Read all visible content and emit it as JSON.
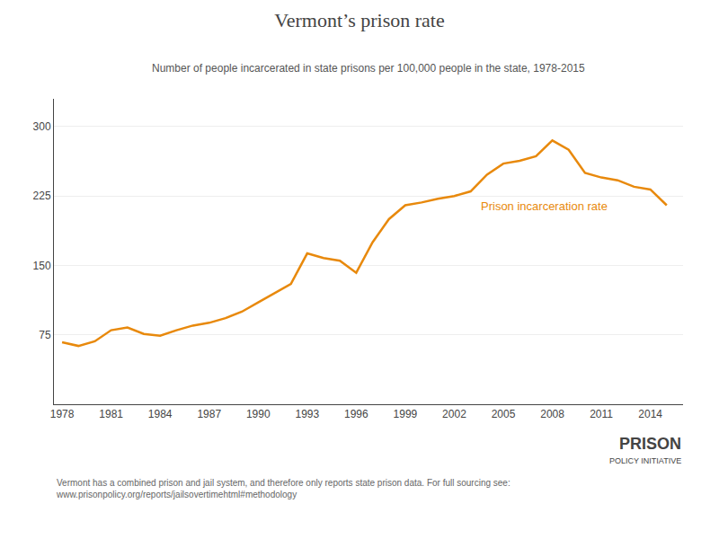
{
  "chart_data": {
    "type": "line",
    "title": "Vermont’s prison rate",
    "subtitle": "Number of people incarcerated in state prisons per 100,000 people in the state, 1978-2015",
    "annotation": "Prison incarceration rate",
    "footnote": [
      "Vermont has a combined prison and jail system, and therefore only reports state prison data. For full sourcing see:",
      "www.prisonpolicy.org/reports/jailsovertimehtml#methodology"
    ],
    "logo": [
      "PRISON",
      "POLICY INITIATIVE"
    ],
    "x": [
      1978,
      1979,
      1980,
      1981,
      1982,
      1983,
      1984,
      1985,
      1986,
      1987,
      1988,
      1989,
      1990,
      1991,
      1992,
      1993,
      1994,
      1995,
      1996,
      1997,
      1998,
      1999,
      2000,
      2001,
      2002,
      2003,
      2004,
      2005,
      2006,
      2007,
      2008,
      2009,
      2010,
      2011,
      2012,
      2013,
      2014,
      2015
    ],
    "values": [
      67,
      63,
      68,
      80,
      83,
      76,
      74,
      80,
      85,
      88,
      93,
      100,
      110,
      120,
      130,
      163,
      158,
      155,
      142,
      175,
      200,
      215,
      218,
      222,
      225,
      230,
      248,
      260,
      263,
      268,
      285,
      275,
      250,
      245,
      242,
      235,
      232,
      215
    ],
    "color": "#E8890C",
    "xlim": [
      1977.5,
      2016
    ],
    "xticks": [
      1978,
      1981,
      1984,
      1987,
      1990,
      1993,
      1996,
      1999,
      2002,
      2005,
      2008,
      2011,
      2014
    ],
    "ylim": [
      0,
      330
    ],
    "yticks": [
      75,
      150,
      225,
      300
    ],
    "grid": "y"
  }
}
